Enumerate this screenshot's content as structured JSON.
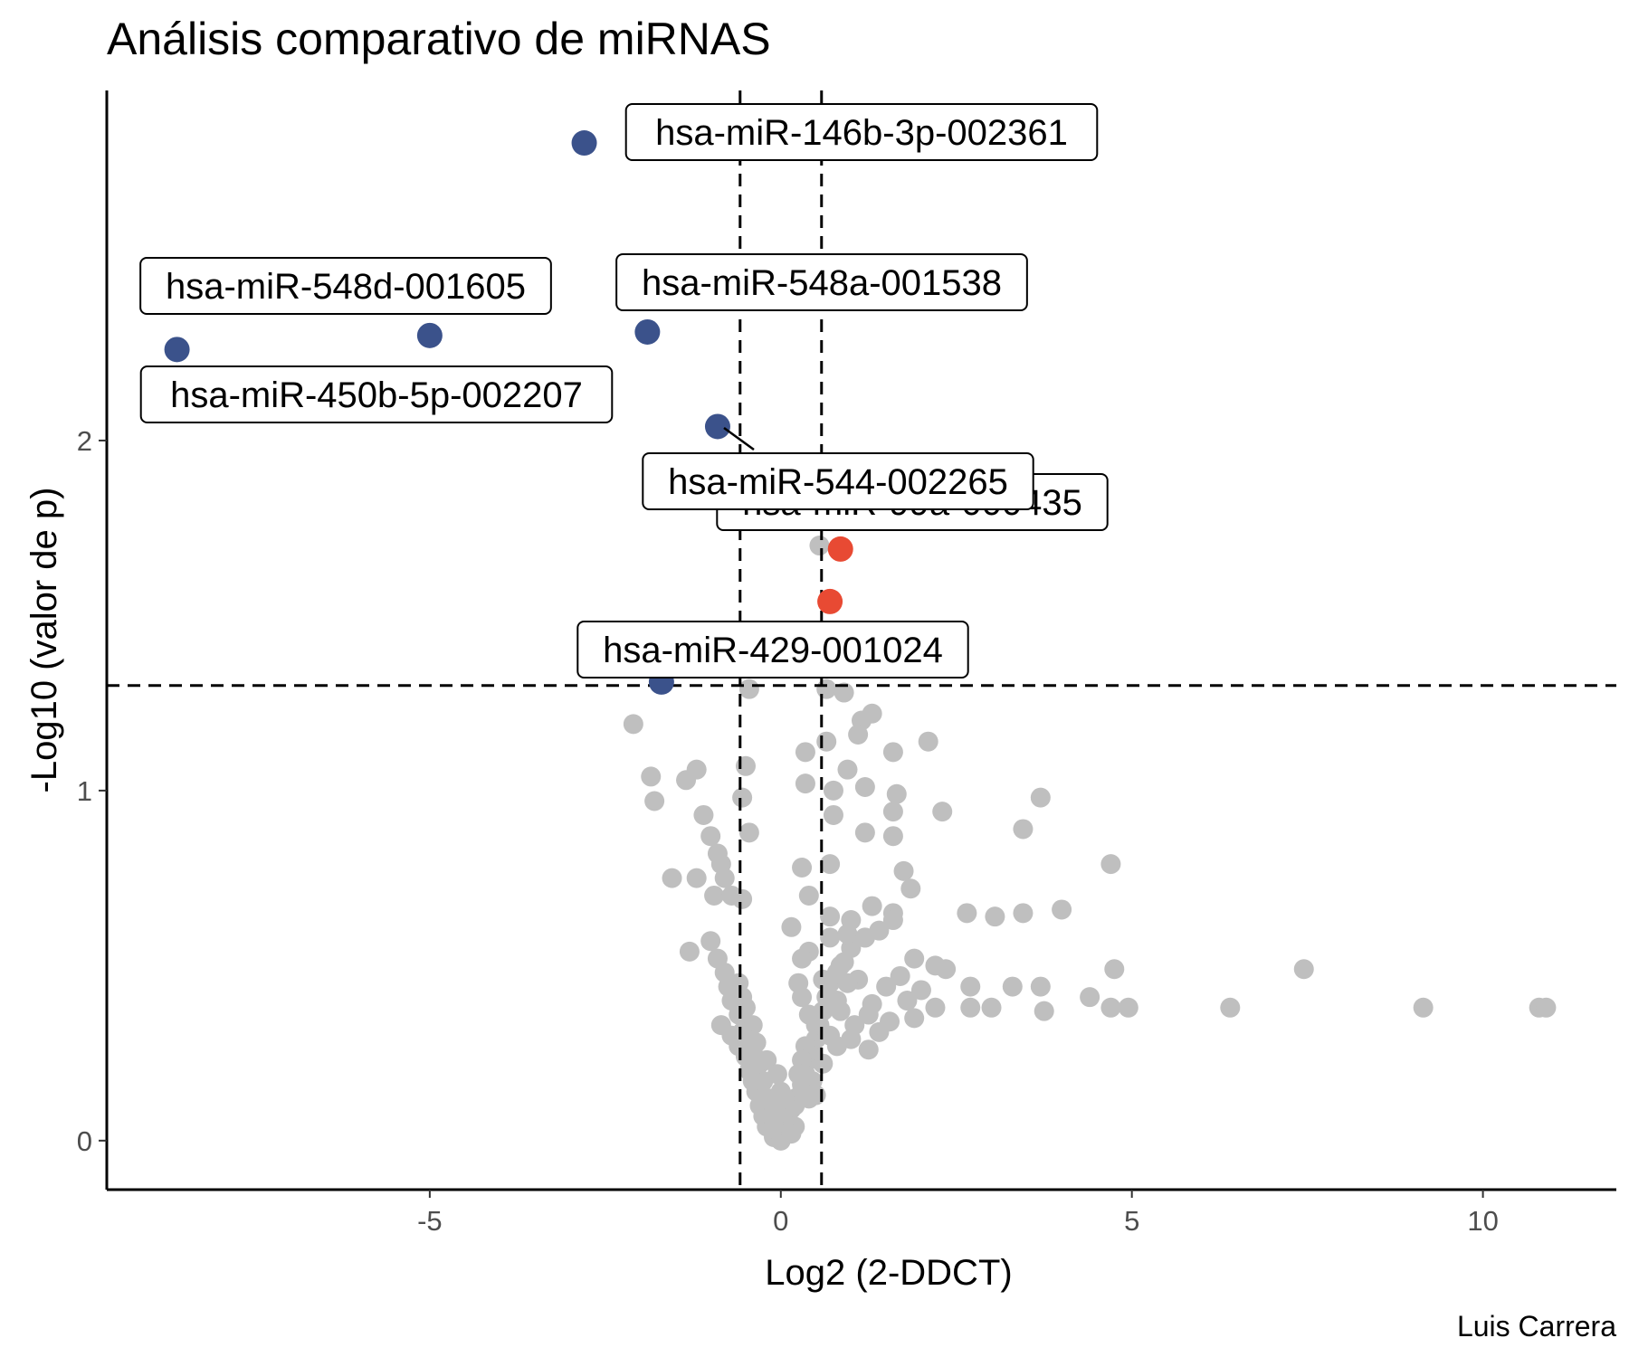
{
  "chart_data": {
    "type": "scatter",
    "title": "Análisis comparativo de miRNAS",
    "xlabel": "Log2 (2-DDCT)",
    "ylabel": "-Log10 (valor de p)",
    "caption": "Luis Carrera",
    "xlim": [
      -9.6,
      11.9
    ],
    "ylim": [
      -0.14,
      3.0
    ],
    "x_ticks": [
      -5,
      0,
      5,
      10
    ],
    "y_ticks": [
      0,
      1,
      2
    ],
    "x_tick_labels": [
      "-5",
      "0",
      "5",
      "10"
    ],
    "y_tick_labels": [
      "0",
      "1",
      "2"
    ],
    "grid": false,
    "reference_lines": {
      "vertical": [
        -0.58,
        0.58
      ],
      "horizontal": 1.3
    },
    "colors": {
      "down": "#3b528b",
      "up": "#e84a33",
      "not_significant": "#bfbfbf",
      "lines": "#000000"
    },
    "highlighted_points": [
      {
        "label": "hsa-miR-146b-3p-002361",
        "x": -2.8,
        "y": 2.85,
        "group": "down"
      },
      {
        "label": "hsa-miR-548d-001605",
        "x": -5.0,
        "y": 2.3,
        "group": "down"
      },
      {
        "label": "hsa-miR-548a-001538",
        "x": -1.9,
        "y": 2.31,
        "group": "down"
      },
      {
        "label": "hsa-miR-450b-5p-002207",
        "x": -8.6,
        "y": 2.26,
        "group": "down"
      },
      {
        "label": "hsa-miR-544-002265",
        "x": -0.9,
        "y": 2.04,
        "group": "down"
      },
      {
        "label": "hsa-miR-99a-000435",
        "x": 0.85,
        "y": 1.69,
        "group": "up"
      },
      {
        "label": "",
        "x": 0.7,
        "y": 1.54,
        "group": "up"
      },
      {
        "label": "hsa-miR-429-001024",
        "x": -1.7,
        "y": 1.31,
        "group": "down"
      }
    ],
    "background_points": [
      [
        -2.1,
        1.19
      ],
      [
        -1.85,
        1.04
      ],
      [
        -1.8,
        0.97
      ],
      [
        -1.35,
        1.03
      ],
      [
        -1.2,
        1.06
      ],
      [
        -1.1,
        0.93
      ],
      [
        -1.0,
        0.87
      ],
      [
        -0.9,
        0.82
      ],
      [
        -0.85,
        0.79
      ],
      [
        -0.8,
        0.75
      ],
      [
        -1.55,
        0.75
      ],
      [
        -1.2,
        0.75
      ],
      [
        -0.95,
        0.7
      ],
      [
        -0.7,
        0.7
      ],
      [
        -0.55,
        0.69
      ],
      [
        -1.0,
        0.57
      ],
      [
        -1.3,
        0.54
      ],
      [
        -0.9,
        0.52
      ],
      [
        -0.8,
        0.48
      ],
      [
        -0.75,
        0.44
      ],
      [
        -0.7,
        0.4
      ],
      [
        -0.6,
        0.36
      ],
      [
        -0.85,
        0.33
      ],
      [
        -0.7,
        0.3
      ],
      [
        -0.6,
        0.27
      ],
      [
        -0.5,
        0.24
      ],
      [
        -0.45,
        0.2
      ],
      [
        -0.4,
        0.17
      ],
      [
        -0.35,
        0.14
      ],
      [
        -0.3,
        0.1
      ],
      [
        -0.25,
        0.07
      ],
      [
        -0.2,
        0.04
      ],
      [
        -0.1,
        0.01
      ],
      [
        0.0,
        0.0
      ],
      [
        0.05,
        0.03
      ],
      [
        0.1,
        0.06
      ],
      [
        0.15,
        0.09
      ],
      [
        0.2,
        0.12
      ],
      [
        0.3,
        0.16
      ],
      [
        0.35,
        0.19
      ],
      [
        0.4,
        0.23
      ],
      [
        0.45,
        0.26
      ],
      [
        0.5,
        0.29
      ],
      [
        0.55,
        0.33
      ],
      [
        0.6,
        0.37
      ],
      [
        0.65,
        0.41
      ],
      [
        0.7,
        0.45
      ],
      [
        0.8,
        0.48
      ],
      [
        0.9,
        0.51
      ],
      [
        1.0,
        0.55
      ],
      [
        1.2,
        0.58
      ],
      [
        1.4,
        0.6
      ],
      [
        1.6,
        0.65
      ],
      [
        -0.55,
        0.98
      ],
      [
        -0.45,
        0.88
      ],
      [
        -0.5,
        1.07
      ],
      [
        -0.45,
        1.29
      ],
      [
        0.65,
        1.29
      ],
      [
        0.9,
        1.28
      ],
      [
        1.15,
        1.2
      ],
      [
        1.3,
        1.22
      ],
      [
        1.1,
        1.16
      ],
      [
        0.65,
        1.14
      ],
      [
        0.35,
        1.11
      ],
      [
        1.6,
        1.11
      ],
      [
        2.1,
        1.14
      ],
      [
        0.95,
        1.06
      ],
      [
        1.2,
        1.01
      ],
      [
        0.75,
        1.0
      ],
      [
        1.65,
        0.99
      ],
      [
        0.35,
        1.02
      ],
      [
        0.75,
        0.93
      ],
      [
        1.6,
        0.94
      ],
      [
        2.3,
        0.94
      ],
      [
        1.2,
        0.88
      ],
      [
        1.6,
        0.87
      ],
      [
        0.3,
        0.78
      ],
      [
        0.7,
        0.79
      ],
      [
        1.75,
        0.77
      ],
      [
        1.85,
        0.72
      ],
      [
        0.4,
        0.7
      ],
      [
        1.3,
        0.67
      ],
      [
        0.7,
        0.64
      ],
      [
        1.0,
        0.63
      ],
      [
        1.6,
        0.63
      ],
      [
        0.15,
        0.61
      ],
      [
        0.7,
        0.58
      ],
      [
        0.95,
        0.59
      ],
      [
        1.2,
        0.58
      ],
      [
        0.4,
        0.54
      ],
      [
        0.3,
        0.52
      ],
      [
        0.85,
        0.5
      ],
      [
        1.9,
        0.52
      ],
      [
        2.2,
        0.5
      ],
      [
        2.35,
        0.49
      ],
      [
        0.6,
        0.46
      ],
      [
        1.1,
        0.46
      ],
      [
        1.7,
        0.47
      ],
      [
        0.25,
        0.45
      ],
      [
        0.95,
        0.45
      ],
      [
        1.5,
        0.44
      ],
      [
        2.0,
        0.43
      ],
      [
        0.3,
        0.41
      ],
      [
        0.8,
        0.4
      ],
      [
        1.3,
        0.39
      ],
      [
        1.8,
        0.4
      ],
      [
        0.4,
        0.36
      ],
      [
        0.85,
        0.37
      ],
      [
        1.25,
        0.36
      ],
      [
        2.2,
        0.38
      ],
      [
        0.5,
        0.33
      ],
      [
        1.05,
        0.33
      ],
      [
        1.55,
        0.34
      ],
      [
        1.9,
        0.35
      ],
      [
        0.7,
        0.3
      ],
      [
        1.0,
        0.29
      ],
      [
        1.4,
        0.31
      ],
      [
        0.35,
        0.27
      ],
      [
        0.8,
        0.27
      ],
      [
        1.25,
        0.26
      ],
      [
        0.3,
        0.23
      ],
      [
        0.6,
        0.22
      ],
      [
        0.25,
        0.19
      ],
      [
        0.45,
        0.17
      ],
      [
        0.3,
        0.14
      ],
      [
        0.5,
        0.13
      ],
      [
        0.2,
        0.1
      ],
      [
        0.4,
        0.12
      ],
      [
        0.1,
        0.07
      ],
      [
        0.2,
        0.04
      ],
      [
        0.15,
        0.02
      ],
      [
        -0.1,
        0.05
      ],
      [
        -0.15,
        0.12
      ],
      [
        -0.25,
        0.17
      ],
      [
        -0.3,
        0.22
      ],
      [
        -0.35,
        0.28
      ],
      [
        -0.4,
        0.33
      ],
      [
        -0.5,
        0.38
      ],
      [
        -0.55,
        0.41
      ],
      [
        -0.6,
        0.45
      ],
      [
        -0.55,
        0.31
      ],
      [
        -0.4,
        0.26
      ],
      [
        -0.2,
        0.23
      ],
      [
        -0.05,
        0.19
      ],
      [
        0.0,
        0.14
      ],
      [
        -0.1,
        0.09
      ],
      [
        0.05,
        0.12
      ],
      [
        2.65,
        0.65
      ],
      [
        3.05,
        0.64
      ],
      [
        3.45,
        0.65
      ],
      [
        4.0,
        0.66
      ],
      [
        3.45,
        0.89
      ],
      [
        3.7,
        0.98
      ],
      [
        4.7,
        0.79
      ],
      [
        2.7,
        0.44
      ],
      [
        3.3,
        0.44
      ],
      [
        3.7,
        0.44
      ],
      [
        2.7,
        0.38
      ],
      [
        3.0,
        0.38
      ],
      [
        3.75,
        0.37
      ],
      [
        4.4,
        0.41
      ],
      [
        4.75,
        0.49
      ],
      [
        4.7,
        0.38
      ],
      [
        4.95,
        0.38
      ],
      [
        6.4,
        0.38
      ],
      [
        7.45,
        0.49
      ],
      [
        9.15,
        0.38
      ],
      [
        10.8,
        0.38
      ],
      [
        10.9,
        0.38
      ],
      [
        0.55,
        1.7
      ]
    ]
  }
}
